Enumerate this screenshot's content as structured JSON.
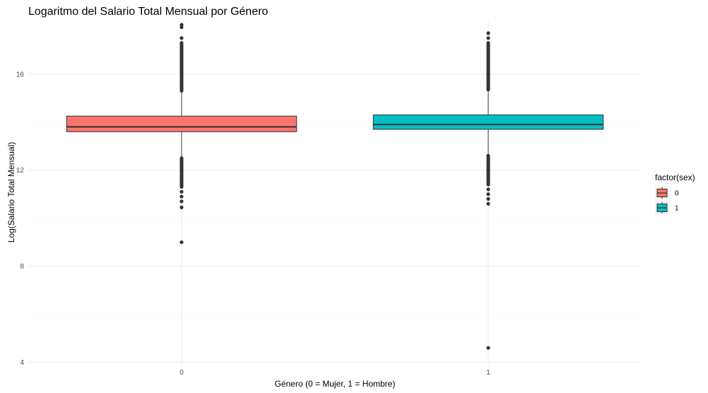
{
  "chart_data": {
    "type": "boxplot",
    "title": "Logaritmo del Salario Total Mensual por Género",
    "xlabel": "Género (0 = Mujer, 1 = Hombre)",
    "ylabel": "Log(Salario Total Mensual)",
    "categories": [
      "0",
      "1"
    ],
    "ylim": [
      3.9,
      18.2
    ],
    "yticks": [
      4,
      8,
      12,
      16
    ],
    "grid": true,
    "legend": {
      "title": "factor(sex)",
      "position": "right",
      "entries": [
        {
          "label": "0",
          "color": "#F8766D"
        },
        {
          "label": "1",
          "color": "#00BFC4"
        }
      ]
    },
    "boxes": [
      {
        "category": "0",
        "color": "#F8766D",
        "q1": 13.6,
        "median": 13.8,
        "q3": 14.25,
        "whisker_low": 12.55,
        "whisker_high": 15.25,
        "outlier_band_high": [
          15.3,
          17.3
        ],
        "outlier_band_low": [
          11.3,
          12.5
        ],
        "outliers": [
          17.5,
          17.95,
          18.05,
          11.1,
          10.9,
          10.7,
          10.45,
          9.0
        ]
      },
      {
        "category": "1",
        "color": "#00BFC4",
        "q1": 13.7,
        "median": 13.9,
        "q3": 14.3,
        "whisker_low": 12.65,
        "whisker_high": 15.3,
        "outlier_band_high": [
          15.35,
          17.3
        ],
        "outlier_band_low": [
          11.4,
          12.6
        ],
        "outliers": [
          17.5,
          17.7,
          11.2,
          11.0,
          10.8,
          10.6,
          4.6
        ]
      }
    ]
  }
}
